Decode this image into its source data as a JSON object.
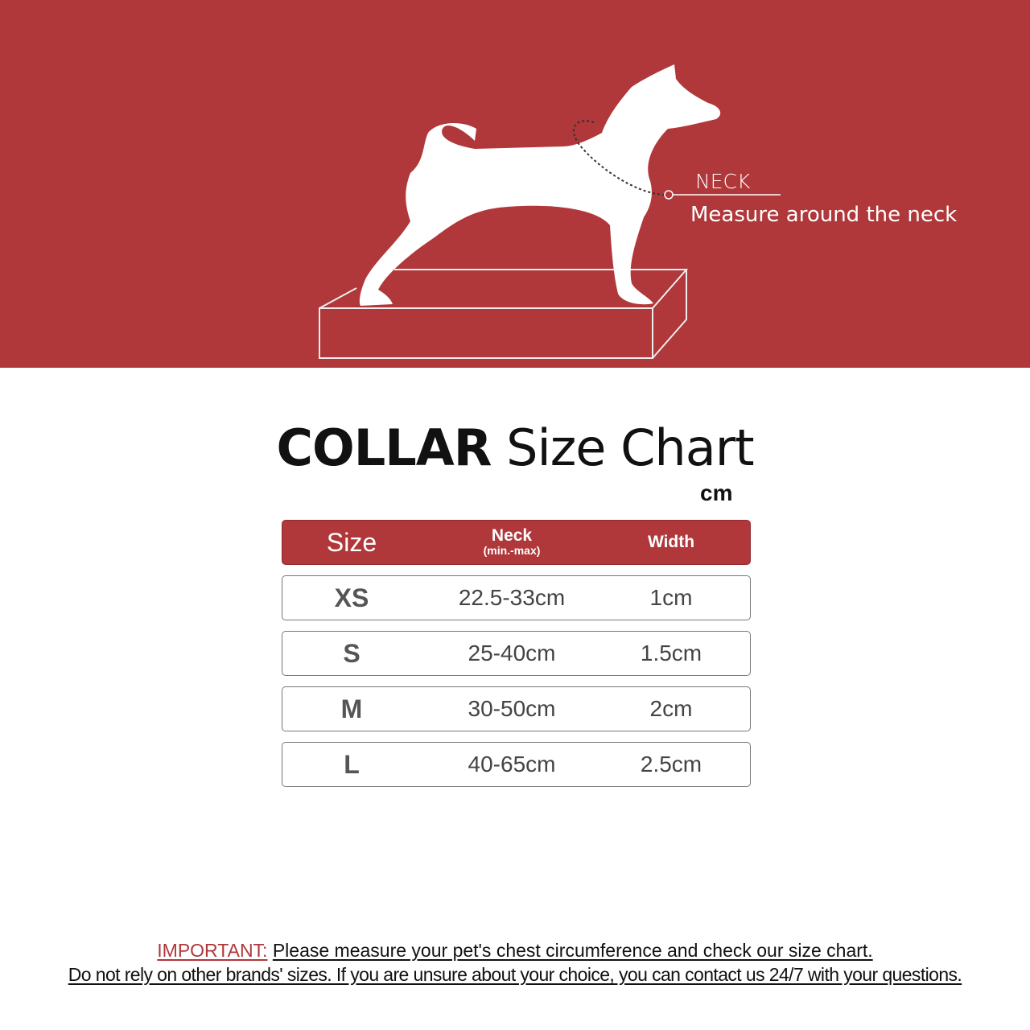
{
  "banner": {
    "neck_label": "NECK",
    "neck_instruction": "Measure around the neck",
    "color": "#b0373a"
  },
  "title": {
    "bold": "COLLAR",
    "rest": "Size Chart"
  },
  "unit": "cm",
  "table": {
    "headers": {
      "size": "Size",
      "neck": "Neck",
      "neck_sub": "(min.-max)",
      "width": "Width"
    },
    "rows": [
      {
        "size": "XS",
        "neck": "22.5-33cm",
        "width": "1cm"
      },
      {
        "size": "S",
        "neck": "25-40cm",
        "width": "1.5cm"
      },
      {
        "size": "M",
        "neck": "30-50cm",
        "width": "2cm"
      },
      {
        "size": "L",
        "neck": "40-65cm",
        "width": "2.5cm"
      }
    ]
  },
  "footer": {
    "important": "IMPORTANT:",
    "line1": "Please measure your pet's chest circumference and check our size chart.",
    "line2": "Do not rely on other brands' sizes. If you are unsure about your choice, you can contact us 24/7 with your questions."
  }
}
